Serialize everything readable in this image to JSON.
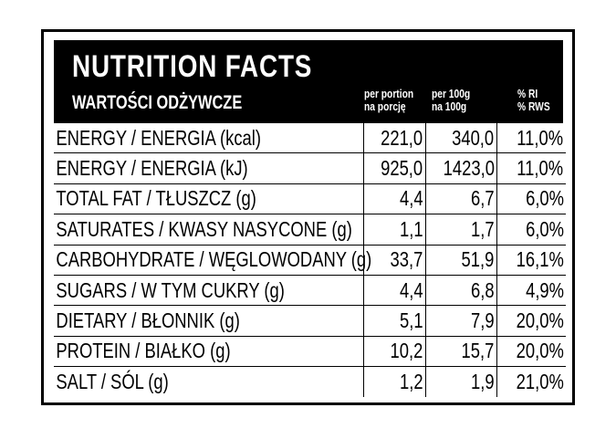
{
  "header": {
    "title": "NUTRITION FACTS",
    "subtitle": "WARTOŚCI ODŻYWCZE",
    "col_portion": [
      "per portion",
      "na porcję"
    ],
    "col_100g": [
      "per 100g",
      "na 100g"
    ],
    "col_ri": [
      "% RI",
      "% RWS"
    ]
  },
  "rows": [
    {
      "name": "ENERGY / ENERGIA (kcal)",
      "portion": "221,0",
      "per100": "340,0",
      "ri": "11,0%"
    },
    {
      "name": "ENERGY / ENERGIA (kJ)",
      "portion": "925,0",
      "per100": "1423,0",
      "ri": "11,0%"
    },
    {
      "name": "TOTAL FAT / TŁUSZCZ (g)",
      "portion": "4,4",
      "per100": "6,7",
      "ri": "6,0%"
    },
    {
      "name": "SATURATES / KWASY NASYCONE (g)",
      "portion": "1,1",
      "per100": "1,7",
      "ri": "6,0%"
    },
    {
      "name": "CARBOHYDRATE / WĘGLOWODANY (g)",
      "portion": "33,7",
      "per100": "51,9",
      "ri": "16,1%"
    },
    {
      "name": "SUGARS / W TYM CUKRY (g)",
      "portion": "4,4",
      "per100": "6,8",
      "ri": "4,9%"
    },
    {
      "name": "DIETARY / BŁONNIK (g)",
      "portion": "5,1",
      "per100": "7,9",
      "ri": "20,0%"
    },
    {
      "name": "PROTEIN / BIAŁKO (g)",
      "portion": "10,2",
      "per100": "15,7",
      "ri": "20,0%"
    },
    {
      "name": "SALT / SÓL (g)",
      "portion": "1,2",
      "per100": "1,9",
      "ri": "21,0%"
    }
  ]
}
